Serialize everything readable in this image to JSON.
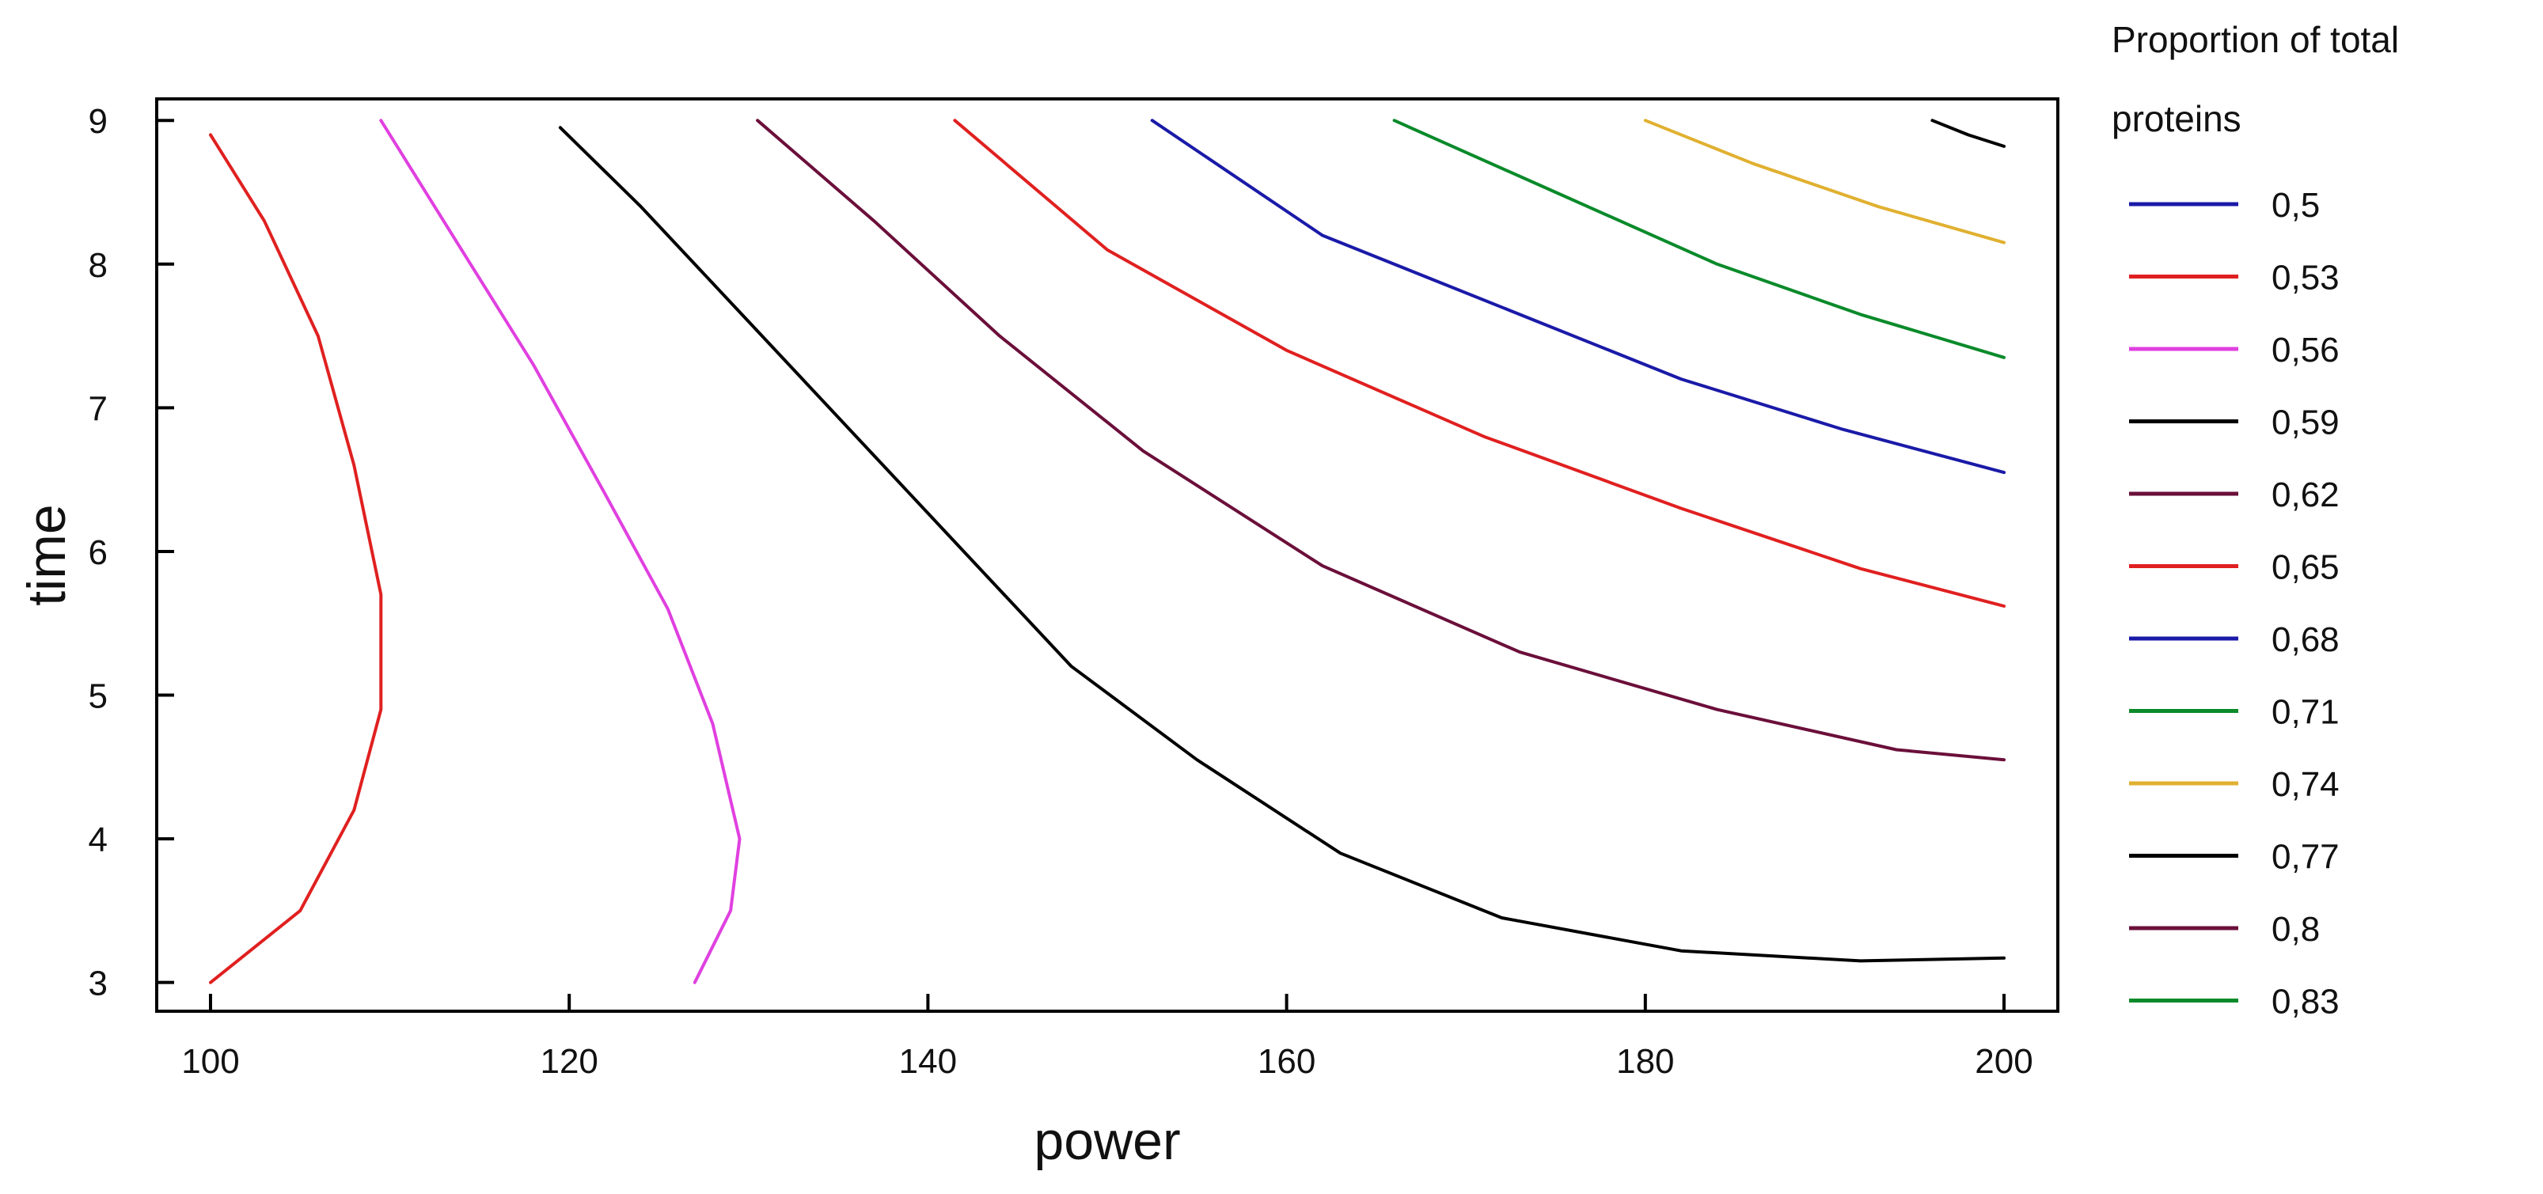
{
  "chart_data": {
    "type": "contour",
    "title": "",
    "xlabel": "power",
    "ylabel": "time",
    "xlim": [
      97,
      203
    ],
    "ylim": [
      2.8,
      9.15
    ],
    "x_ticks": [
      {
        "value": 100,
        "label": "100"
      },
      {
        "value": 120,
        "label": "120"
      },
      {
        "value": 140,
        "label": "140"
      },
      {
        "value": 160,
        "label": "160"
      },
      {
        "value": 180,
        "label": "180"
      },
      {
        "value": 200,
        "label": "200"
      }
    ],
    "y_ticks": [
      {
        "value": 3,
        "label": "3"
      },
      {
        "value": 4,
        "label": "4"
      },
      {
        "value": 5,
        "label": "5"
      },
      {
        "value": 6,
        "label": "6"
      },
      {
        "value": 7,
        "label": "7"
      },
      {
        "value": 8,
        "label": "8"
      },
      {
        "value": 9,
        "label": "9"
      }
    ],
    "grid": false,
    "legend": {
      "placement": "right",
      "title_lines": [
        "Proportion of total",
        "proteins"
      ],
      "entries": [
        {
          "label": "0,5",
          "color": "#1a1aa8"
        },
        {
          "label": "0,53",
          "color": "#e02020"
        },
        {
          "label": "0,56",
          "color": "#e040e0"
        },
        {
          "label": "0,59",
          "color": "#000000"
        },
        {
          "label": "0,62",
          "color": "#6b0f3a"
        },
        {
          "label": "0,65",
          "color": "#e02020"
        },
        {
          "label": "0,68",
          "color": "#1a1aa8"
        },
        {
          "label": "0,71",
          "color": "#0a8a2a"
        },
        {
          "label": "0,74",
          "color": "#e0b030"
        },
        {
          "label": "0,77",
          "color": "#000000"
        },
        {
          "label": "0,8",
          "color": "#6b0f3a"
        },
        {
          "label": "0,83",
          "color": "#0a8a2a"
        }
      ]
    },
    "series": [
      {
        "label": "0,53",
        "color": "#e02020",
        "points": [
          [
            100,
            8.9
          ],
          [
            103,
            8.3
          ],
          [
            106,
            7.5
          ],
          [
            108,
            6.6
          ],
          [
            109.5,
            5.7
          ],
          [
            109.5,
            4.9
          ],
          [
            108,
            4.2
          ],
          [
            105,
            3.5
          ],
          [
            100,
            3.0
          ]
        ]
      },
      {
        "label": "0,56",
        "color": "#e040e0",
        "points": [
          [
            109.5,
            9.0
          ],
          [
            114,
            8.1
          ],
          [
            118,
            7.3
          ],
          [
            122,
            6.4
          ],
          [
            125.5,
            5.6
          ],
          [
            128,
            4.8
          ],
          [
            129.5,
            4.0
          ],
          [
            129,
            3.5
          ],
          [
            127,
            3.0
          ]
        ]
      },
      {
        "label": "0,59",
        "color": "#000000",
        "points": [
          [
            119.5,
            8.95
          ],
          [
            124,
            8.4
          ],
          [
            130,
            7.6
          ],
          [
            136,
            6.8
          ],
          [
            142,
            6.0
          ],
          [
            148,
            5.2
          ],
          [
            155,
            4.55
          ],
          [
            163,
            3.9
          ],
          [
            172,
            3.45
          ],
          [
            182,
            3.22
          ],
          [
            192,
            3.15
          ],
          [
            200,
            3.17
          ]
        ]
      },
      {
        "label": "0,62",
        "color": "#6b0f3a",
        "points": [
          [
            130.5,
            9.0
          ],
          [
            137,
            8.3
          ],
          [
            144,
            7.5
          ],
          [
            152,
            6.7
          ],
          [
            162,
            5.9
          ],
          [
            173,
            5.3
          ],
          [
            184,
            4.9
          ],
          [
            194,
            4.62
          ],
          [
            200,
            4.55
          ]
        ]
      },
      {
        "label": "0,65",
        "color": "#e02020",
        "points": [
          [
            141.5,
            9.0
          ],
          [
            150,
            8.1
          ],
          [
            160,
            7.4
          ],
          [
            171,
            6.8
          ],
          [
            182,
            6.3
          ],
          [
            192,
            5.88
          ],
          [
            200,
            5.62
          ]
        ]
      },
      {
        "label": "0,68",
        "color": "#1a1aa8",
        "points": [
          [
            152.5,
            9.0
          ],
          [
            162,
            8.2
          ],
          [
            172,
            7.7
          ],
          [
            182,
            7.2
          ],
          [
            191,
            6.85
          ],
          [
            200,
            6.55
          ]
        ]
      },
      {
        "label": "0,71",
        "color": "#0a8a2a",
        "points": [
          [
            166,
            9.0
          ],
          [
            175,
            8.5
          ],
          [
            184,
            8.0
          ],
          [
            192,
            7.65
          ],
          [
            200,
            7.35
          ]
        ]
      },
      {
        "label": "0,74",
        "color": "#e0b030",
        "points": [
          [
            180,
            9.0
          ],
          [
            186,
            8.7
          ],
          [
            193,
            8.4
          ],
          [
            200,
            8.15
          ]
        ]
      },
      {
        "label": "0,77",
        "color": "#000000",
        "points": [
          [
            196,
            9.0
          ],
          [
            198,
            8.9
          ],
          [
            200,
            8.82
          ]
        ]
      }
    ]
  }
}
